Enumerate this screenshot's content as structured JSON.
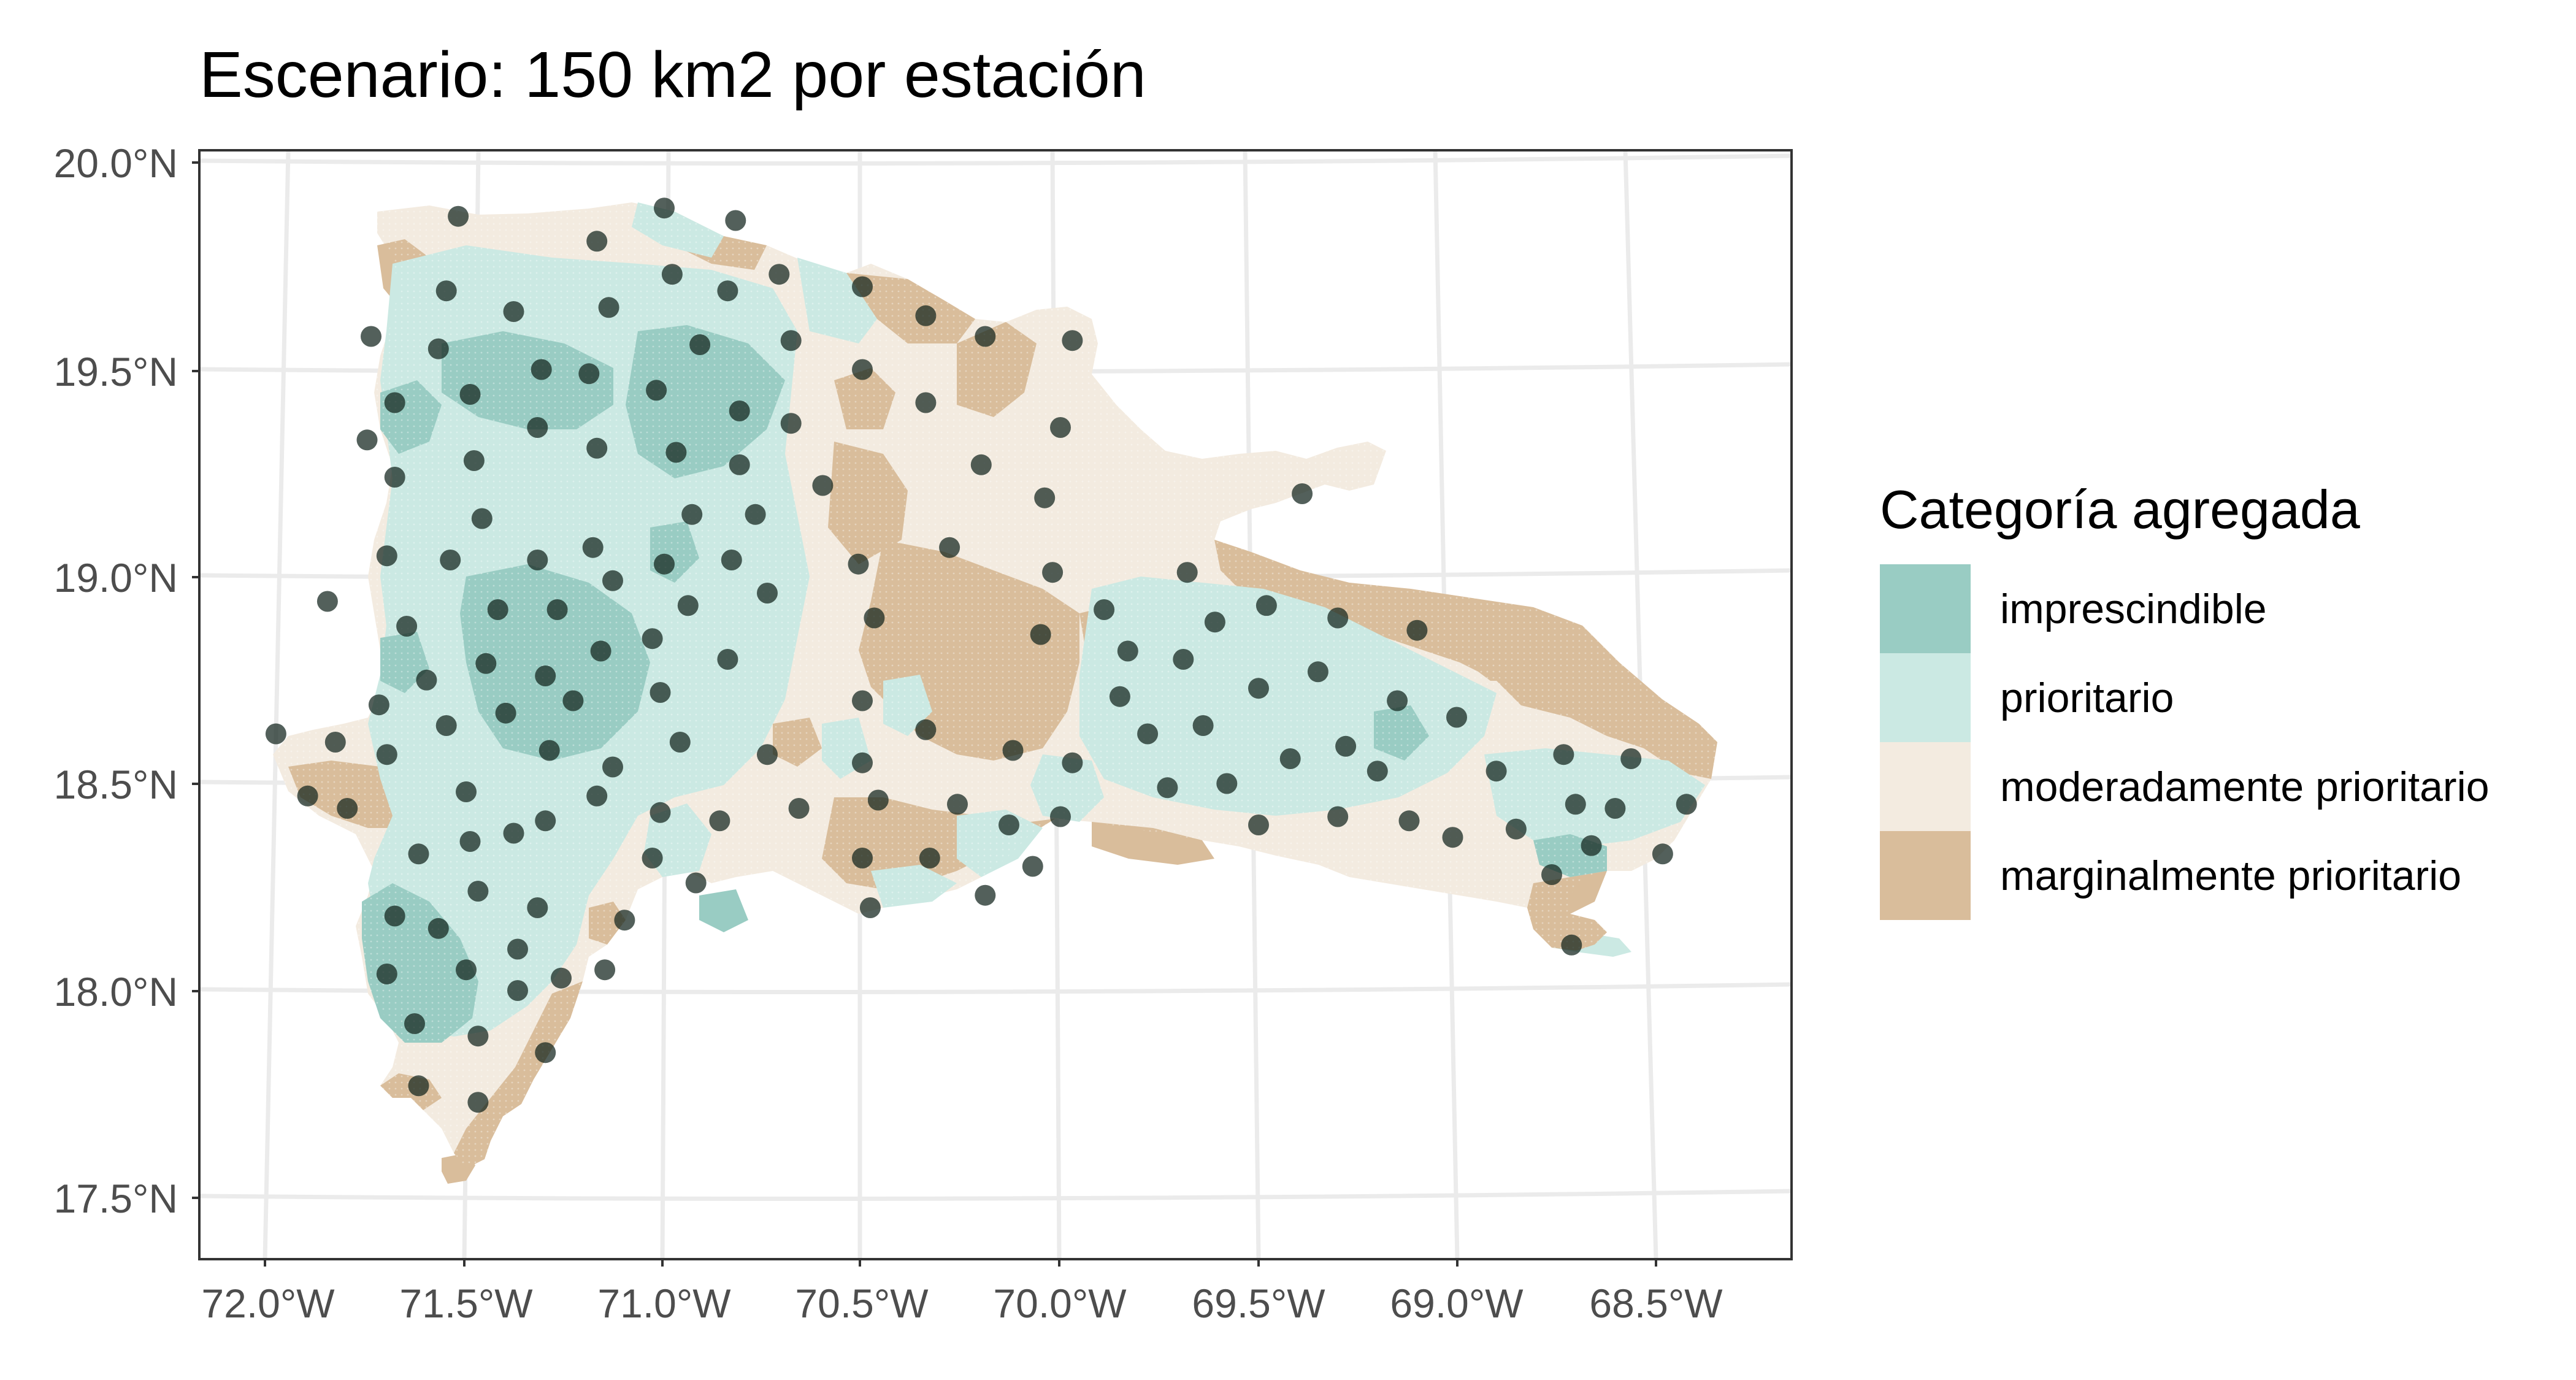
{
  "title": "Escenario: 150 km2 por estación",
  "axes": {
    "x_ticks": [
      "72.0°W",
      "71.5°W",
      "71.0°W",
      "70.5°W",
      "70.0°W",
      "69.5°W",
      "69.0°W",
      "68.5°W"
    ],
    "y_ticks": [
      "20.0°N",
      "19.5°N",
      "19.0°N",
      "18.5°N",
      "18.0°N",
      "17.5°N"
    ]
  },
  "legend": {
    "title": "Categoría agregada",
    "items": [
      {
        "label": "imprescindible",
        "color": "#99ccc3"
      },
      {
        "label": "prioritario",
        "color": "#cbe9e3"
      },
      {
        "label": "moderadamente prioritario",
        "color": "#f3ebe0"
      },
      {
        "label": "marginalmente prioritario",
        "color": "#d9bd9b"
      }
    ]
  },
  "colors": {
    "panel_border": "#333333",
    "grid": "#ebebeb",
    "station": "#10231c"
  },
  "stations": [
    [
      -71.52,
      19.87
    ],
    [
      -71.0,
      19.89
    ],
    [
      -70.82,
      19.86
    ],
    [
      -71.17,
      19.81
    ],
    [
      -71.55,
      19.69
    ],
    [
      -71.38,
      19.64
    ],
    [
      -71.14,
      19.65
    ],
    [
      -70.98,
      19.73
    ],
    [
      -70.84,
      19.69
    ],
    [
      -70.71,
      19.73
    ],
    [
      -70.5,
      19.7
    ],
    [
      -70.34,
      19.63
    ],
    [
      -70.19,
      19.58
    ],
    [
      -69.97,
      19.57
    ],
    [
      -71.74,
      19.58
    ],
    [
      -71.57,
      19.55
    ],
    [
      -71.68,
      19.42
    ],
    [
      -71.49,
      19.44
    ],
    [
      -71.31,
      19.5
    ],
    [
      -71.19,
      19.49
    ],
    [
      -71.02,
      19.45
    ],
    [
      -70.91,
      19.56
    ],
    [
      -70.81,
      19.4
    ],
    [
      -70.68,
      19.57
    ],
    [
      -70.5,
      19.5
    ],
    [
      -70.34,
      19.42
    ],
    [
      -70.0,
      19.36
    ],
    [
      -69.39,
      19.2
    ],
    [
      -71.75,
      19.33
    ],
    [
      -71.68,
      19.24
    ],
    [
      -71.48,
      19.28
    ],
    [
      -71.32,
      19.36
    ],
    [
      -71.17,
      19.31
    ],
    [
      -70.97,
      19.3
    ],
    [
      -70.81,
      19.27
    ],
    [
      -70.68,
      19.37
    ],
    [
      -70.6,
      19.22
    ],
    [
      -70.2,
      19.27
    ],
    [
      -70.04,
      19.19
    ],
    [
      -70.28,
      19.07
    ],
    [
      -71.85,
      18.94
    ],
    [
      -71.7,
      19.05
    ],
    [
      -71.46,
      19.14
    ],
    [
      -71.54,
      19.04
    ],
    [
      -71.32,
      19.04
    ],
    [
      -71.18,
      19.07
    ],
    [
      -71.0,
      19.03
    ],
    [
      -70.93,
      19.15
    ],
    [
      -70.77,
      19.15
    ],
    [
      -70.83,
      19.04
    ],
    [
      -70.51,
      19.03
    ],
    [
      -70.02,
      19.01
    ],
    [
      -69.68,
      19.01
    ],
    [
      -71.65,
      18.88
    ],
    [
      -71.42,
      18.92
    ],
    [
      -71.27,
      18.92
    ],
    [
      -71.13,
      18.99
    ],
    [
      -71.03,
      18.85
    ],
    [
      -70.94,
      18.93
    ],
    [
      -70.74,
      18.96
    ],
    [
      -70.47,
      18.9
    ],
    [
      -70.05,
      18.86
    ],
    [
      -69.83,
      18.82
    ],
    [
      -69.89,
      18.92
    ],
    [
      -69.61,
      18.89
    ],
    [
      -69.48,
      18.93
    ],
    [
      -69.3,
      18.9
    ],
    [
      -69.1,
      18.87
    ],
    [
      -71.6,
      18.75
    ],
    [
      -71.45,
      18.79
    ],
    [
      -71.3,
      18.76
    ],
    [
      -71.23,
      18.7
    ],
    [
      -71.16,
      18.82
    ],
    [
      -71.01,
      18.72
    ],
    [
      -70.84,
      18.8
    ],
    [
      -70.5,
      18.7
    ],
    [
      -69.85,
      18.71
    ],
    [
      -69.69,
      18.8
    ],
    [
      -69.5,
      18.73
    ],
    [
      -69.35,
      18.77
    ],
    [
      -69.15,
      18.7
    ],
    [
      -71.98,
      18.62
    ],
    [
      -71.83,
      18.6
    ],
    [
      -71.72,
      18.69
    ],
    [
      -71.55,
      18.64
    ],
    [
      -71.4,
      18.67
    ],
    [
      -71.29,
      18.58
    ],
    [
      -71.13,
      18.54
    ],
    [
      -70.96,
      18.6
    ],
    [
      -70.74,
      18.57
    ],
    [
      -70.5,
      18.55
    ],
    [
      -70.34,
      18.63
    ],
    [
      -70.12,
      18.58
    ],
    [
      -69.97,
      18.55
    ],
    [
      -69.78,
      18.62
    ],
    [
      -69.64,
      18.64
    ],
    [
      -69.28,
      18.59
    ],
    [
      -69.0,
      18.66
    ],
    [
      -71.9,
      18.47
    ],
    [
      -71.8,
      18.44
    ],
    [
      -71.7,
      18.57
    ],
    [
      -71.5,
      18.48
    ],
    [
      -71.38,
      18.38
    ],
    [
      -71.17,
      18.47
    ],
    [
      -71.01,
      18.43
    ],
    [
      -70.86,
      18.41
    ],
    [
      -70.66,
      18.44
    ],
    [
      -70.46,
      18.46
    ],
    [
      -70.26,
      18.45
    ],
    [
      -70.13,
      18.4
    ],
    [
      -70.0,
      18.42
    ],
    [
      -69.73,
      18.49
    ],
    [
      -69.58,
      18.5
    ],
    [
      -69.5,
      18.4
    ],
    [
      -69.42,
      18.56
    ],
    [
      -69.2,
      18.53
    ],
    [
      -68.9,
      18.53
    ],
    [
      -68.73,
      18.57
    ],
    [
      -68.56,
      18.56
    ],
    [
      -71.62,
      18.33
    ],
    [
      -71.49,
      18.36
    ],
    [
      -71.3,
      18.41
    ],
    [
      -71.03,
      18.32
    ],
    [
      -70.92,
      18.26
    ],
    [
      -70.5,
      18.32
    ],
    [
      -70.33,
      18.32
    ],
    [
      -70.07,
      18.3
    ],
    [
      -69.3,
      18.42
    ],
    [
      -69.12,
      18.41
    ],
    [
      -69.01,
      18.37
    ],
    [
      -68.85,
      18.39
    ],
    [
      -68.7,
      18.45
    ],
    [
      -68.6,
      18.44
    ],
    [
      -68.48,
      18.33
    ],
    [
      -68.42,
      18.45
    ],
    [
      -68.76,
      18.28
    ],
    [
      -68.66,
      18.35
    ],
    [
      -71.68,
      18.18
    ],
    [
      -71.57,
      18.15
    ],
    [
      -71.47,
      18.24
    ],
    [
      -71.32,
      18.2
    ],
    [
      -71.1,
      18.17
    ],
    [
      -70.48,
      18.2
    ],
    [
      -70.19,
      18.23
    ],
    [
      -68.71,
      18.11
    ],
    [
      -71.7,
      18.04
    ],
    [
      -71.5,
      18.05
    ],
    [
      -71.37,
      18.1
    ],
    [
      -71.15,
      18.05
    ],
    [
      -71.37,
      18.0
    ],
    [
      -71.26,
      18.03
    ],
    [
      -71.63,
      17.92
    ],
    [
      -71.47,
      17.89
    ],
    [
      -71.3,
      17.85
    ],
    [
      -71.62,
      17.77
    ],
    [
      -71.47,
      17.73
    ]
  ]
}
